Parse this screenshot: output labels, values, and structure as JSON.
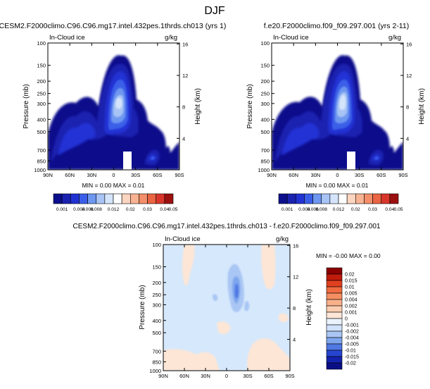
{
  "figure": {
    "title": "DJF"
  },
  "colors": {
    "deep_navy": "#0c0f8c",
    "navy": "#1a22b0",
    "blue": "#2233d4",
    "mid_blue": "#3a5ee8",
    "light_blue": "#6e97f0",
    "pale_blue": "#a8c4f5",
    "very_pale_blue": "#d4e4fb",
    "white": "#ffffff",
    "peach": "#fbd5c0",
    "light_orange": "#f7b393",
    "orange": "#f38f6a",
    "red_orange": "#ea6543",
    "red": "#d9362b",
    "dark_red": "#9c1010",
    "diff_background": "#d6e8fb"
  },
  "chart_data": [
    {
      "type": "heatmap",
      "id": "panel1",
      "title": "CESM2.F2000climo.C96.C96.mg17.intel.432pes.1thrds.ch013 (yrs 1)",
      "variable": "In-Cloud ice",
      "units": "g/kg",
      "ylabel": "Pressure (mb)",
      "y2label": "Height (km)",
      "x_ticks": [
        "90N",
        "60N",
        "30N",
        "0",
        "30S",
        "60S",
        "90S"
      ],
      "x_values": [
        90,
        60,
        30,
        0,
        -30,
        -60,
        -90
      ],
      "y_ticks": [
        "100",
        "150",
        "200",
        "250",
        "300",
        "400",
        "500",
        "700",
        "850",
        "1000"
      ],
      "y_values": [
        100,
        150,
        200,
        250,
        300,
        400,
        500,
        700,
        850,
        1000
      ],
      "ylim": [
        100,
        1000
      ],
      "y2_ticks": [
        "16",
        "12",
        "8",
        "4"
      ],
      "y2_values": [
        16,
        12,
        8,
        4
      ],
      "stats_text": "MIN =  0.00  MAX =  0.01",
      "colorbar_labels": [
        "0.001",
        "0.004",
        "0.006",
        "0.008",
        "0.012",
        "0.02",
        "0.03",
        "0.04",
        "0.05"
      ],
      "colorbar_values": [
        0.001,
        0.002,
        0.004,
        0.006,
        0.008,
        0.01,
        0.012,
        0.015,
        0.02,
        0.025,
        0.03,
        0.035,
        0.04,
        0.05
      ],
      "colorbar_bounds": [
        0,
        0.001,
        0.002,
        0.004,
        0.006,
        0.008,
        0.01,
        0.012,
        0.015,
        0.02,
        0.025,
        0.03,
        0.035,
        0.04,
        0.05
      ],
      "colorbar_colors": [
        "#0c0f8c",
        "#1a22b0",
        "#2233d4",
        "#3a5ee8",
        "#6e97f0",
        "#a8c4f5",
        "#d4e4fb",
        "#ffffff",
        "#fbd5c0",
        "#f7b393",
        "#f38f6a",
        "#ea6543",
        "#d9362b",
        "#9c1010"
      ]
    },
    {
      "type": "heatmap",
      "id": "panel2",
      "title": "f.e20.F2000climo.f09_f09.297.001 (yrs 2-11)",
      "variable": "In-Cloud ice",
      "units": "g/kg",
      "ylabel": "Pressure (mb)",
      "y2label": "Height (km)",
      "x_ticks": [
        "90N",
        "60N",
        "30N",
        "0",
        "30S",
        "60S",
        "90S"
      ],
      "x_values": [
        90,
        60,
        30,
        0,
        -30,
        -60,
        -90
      ],
      "y_ticks": [
        "100",
        "150",
        "200",
        "250",
        "300",
        "400",
        "500",
        "700",
        "850",
        "1000"
      ],
      "y_values": [
        100,
        150,
        200,
        250,
        300,
        400,
        500,
        700,
        850,
        1000
      ],
      "ylim": [
        100,
        1000
      ],
      "y2_ticks": [
        "16",
        "12",
        "8",
        "4"
      ],
      "y2_values": [
        16,
        12,
        8,
        4
      ],
      "stats_text": "MIN =  0.00  MAX =  0.01",
      "colorbar_labels": [
        "0.001",
        "0.004",
        "0.006",
        "0.008",
        "0.012",
        "0.02",
        "0.03",
        "0.04",
        "0.05"
      ],
      "colorbar_values": [
        0.001,
        0.002,
        0.004,
        0.006,
        0.008,
        0.01,
        0.012,
        0.015,
        0.02,
        0.025,
        0.03,
        0.035,
        0.04,
        0.05
      ],
      "colorbar_bounds": [
        0,
        0.001,
        0.002,
        0.004,
        0.006,
        0.008,
        0.01,
        0.012,
        0.015,
        0.02,
        0.025,
        0.03,
        0.035,
        0.04,
        0.05
      ],
      "colorbar_colors": [
        "#0c0f8c",
        "#1a22b0",
        "#2233d4",
        "#3a5ee8",
        "#6e97f0",
        "#a8c4f5",
        "#d4e4fb",
        "#ffffff",
        "#fbd5c0",
        "#f7b393",
        "#f38f6a",
        "#ea6543",
        "#d9362b",
        "#9c1010"
      ]
    },
    {
      "type": "heatmap",
      "id": "panel3",
      "title": "CESM2.F2000climo.C96.C96.mg17.intel.432pes.1thrds.ch013 - f.e20.F2000climo.f09_f09.297.001",
      "variable": "In-Cloud ice",
      "units": "g/kg",
      "ylabel": "Pressure (mb)",
      "y2label": "Height (km)",
      "x_ticks": [
        "90N",
        "60N",
        "30N",
        "0",
        "30S",
        "60S",
        "90S"
      ],
      "x_values": [
        90,
        60,
        30,
        0,
        -30,
        -60,
        -90
      ],
      "y_ticks": [
        "100",
        "150",
        "200",
        "250",
        "300",
        "400",
        "500",
        "700",
        "850",
        "1000"
      ],
      "y_values": [
        100,
        150,
        200,
        250,
        300,
        400,
        500,
        700,
        850,
        1000
      ],
      "ylim": [
        100,
        1000
      ],
      "y2_ticks": [
        "16",
        "12",
        "8",
        "4"
      ],
      "y2_values": [
        16,
        12,
        8,
        4
      ],
      "stats_text": "MIN = -0.00  MAX =  0.00",
      "colorbar_labels": [
        "0.02",
        "0.015",
        "0.01",
        "0.005",
        "0.004",
        "0.002",
        "0.001",
        "0",
        "-0.001",
        "-0.002",
        "-0.004",
        "-0.005",
        "-0.01",
        "-0.015",
        "-0.02"
      ],
      "colorbar_values": [
        0.02,
        0.015,
        0.01,
        0.005,
        0.004,
        0.002,
        0.001,
        0,
        -0.001,
        -0.002,
        -0.004,
        -0.005,
        -0.01,
        -0.015,
        -0.02
      ],
      "colorbar_colors": [
        "#8a0000",
        "#c01a0c",
        "#e0401f",
        "#f06b40",
        "#f58f62",
        "#f8b08a",
        "#fbcdb0",
        "#fde6d6",
        "#eaf2fd",
        "#d0e2fb",
        "#a9c6f4",
        "#7ea6ee",
        "#4f78e3",
        "#2645d0",
        "#1323ad",
        "#0a0e85"
      ]
    }
  ]
}
